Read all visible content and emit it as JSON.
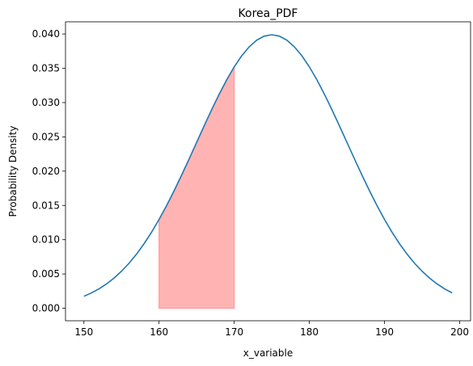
{
  "chart_data": {
    "type": "line",
    "title": "Korea_PDF",
    "xlabel": "x_variable",
    "ylabel": "Probability Density",
    "xlim": [
      147.55,
      201.45
    ],
    "ylim": [
      -0.00182,
      0.04178
    ],
    "xticks": [
      150,
      160,
      170,
      180,
      190,
      200
    ],
    "xtick_labels": [
      "150",
      "160",
      "170",
      "180",
      "190",
      "200"
    ],
    "yticks": [
      0.0,
      0.005,
      0.01,
      0.015,
      0.02,
      0.025,
      0.03,
      0.035,
      0.04
    ],
    "ytick_labels": [
      "0.000",
      "0.005",
      "0.010",
      "0.015",
      "0.020",
      "0.025",
      "0.030",
      "0.035",
      "0.040"
    ],
    "grid": false,
    "series": [
      {
        "distribution": "normal",
        "mean": 175,
        "std": 10,
        "x_range": [
          150,
          199
        ],
        "color": "#1f77b4"
      }
    ],
    "shaded_region": {
      "x_range": [
        160,
        170
      ],
      "color": "#ff9999"
    }
  }
}
